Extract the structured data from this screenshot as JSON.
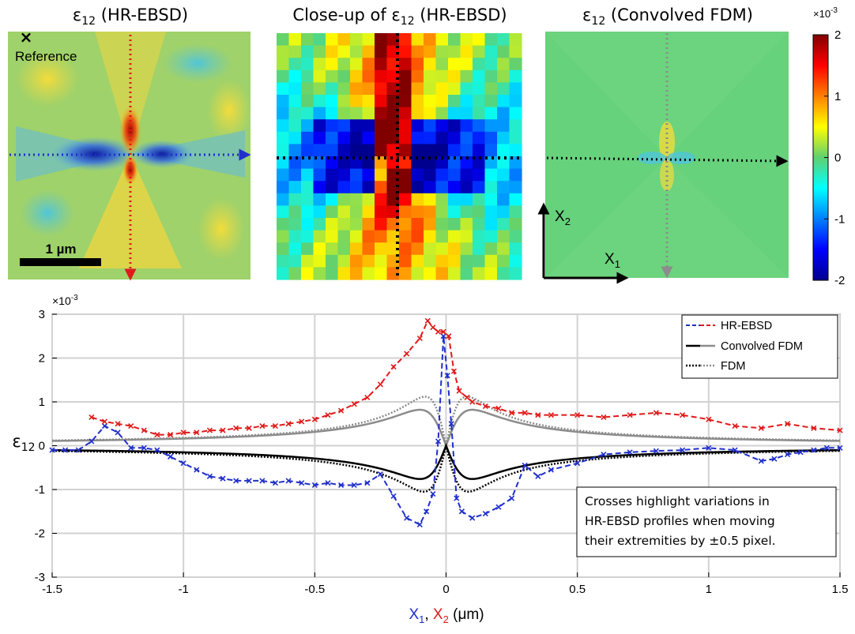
{
  "maps": [
    {
      "title_main": "ε",
      "title_sub": "12",
      "title_tail": " (HR-EBSD)",
      "reference_label": "Reference",
      "scale_label": "1 µm"
    },
    {
      "title_main": "Close-up of ε",
      "title_sub": "12",
      "title_tail": " (HR-EBSD)"
    },
    {
      "title_main": "ε",
      "title_sub": "12",
      "title_tail": " (Convolved FDM)"
    }
  ],
  "axes_glyph": {
    "x_main": "X",
    "x_sub": "1",
    "y_main": "X",
    "y_sub": "2"
  },
  "colorbar": {
    "exponent_base": "×10",
    "exponent_power": "-3",
    "ticks": [
      "2",
      "1",
      "0",
      "-1",
      "-2"
    ],
    "range": [
      -2,
      2
    ]
  },
  "colors": {
    "blue": "#1f2ecc",
    "red": "#e01a1a",
    "black": "#000000",
    "gray": "#8c8c8c"
  },
  "chart_data": {
    "type": "line",
    "exponent_base": "×10",
    "exponent_power": "-3",
    "ylabel_main": "ε",
    "ylabel_sub": "12",
    "xlabel": {
      "p1_main": "X",
      "p1_sub": "1",
      "sep": ", ",
      "p2_main": "X",
      "p2_sub": "2",
      "unit": " (μm)"
    },
    "xlim": [
      -1.5,
      1.5
    ],
    "ylim": [
      -3,
      3
    ],
    "xticks": [
      -1.5,
      -1,
      -0.5,
      0,
      0.5,
      1,
      1.5
    ],
    "xtick_labels": [
      "-1.5",
      "-1",
      "-0.5",
      "0",
      "0.5",
      "1",
      "1.5"
    ],
    "yticks": [
      3,
      2,
      1,
      0,
      -1,
      -2,
      -3
    ],
    "ytick_labels": [
      "3",
      "2",
      "1",
      "0",
      "-1",
      "-2",
      "-3"
    ],
    "grid": true,
    "legend_position": "top-right",
    "legend": [
      {
        "label": "HR-EBSD",
        "style": "dashed-blue-red"
      },
      {
        "label": "Convolved FDM",
        "style": "solid-black-gray"
      },
      {
        "label": "FDM",
        "style": "dotted-black-gray"
      }
    ],
    "annotation": [
      "Crosses highlight variations in",
      "HR-EBSD profiles when moving",
      "their extremities by ±0.5 pixel."
    ],
    "series": [
      {
        "name": "HR-EBSD X1",
        "color": "#1f2ecc",
        "style": "dashed",
        "x": [
          -1.5,
          -1.45,
          -1.4,
          -1.35,
          -1.3,
          -1.25,
          -1.2,
          -1.15,
          -1.1,
          -1.05,
          -1,
          -0.95,
          -0.9,
          -0.85,
          -0.8,
          -0.75,
          -0.7,
          -0.65,
          -0.6,
          -0.55,
          -0.5,
          -0.45,
          -0.4,
          -0.35,
          -0.3,
          -0.25,
          -0.2,
          -0.15,
          -0.1,
          -0.075,
          -0.05,
          -0.03,
          -0.01,
          0.005,
          0.02,
          0.04,
          0.06,
          0.1,
          0.15,
          0.2,
          0.25,
          0.3,
          0.35,
          0.4,
          0.5,
          0.6,
          0.7,
          0.8,
          0.9,
          1,
          1.1,
          1.2,
          1.25,
          1.3,
          1.35,
          1.4,
          1.45,
          1.5
        ],
        "y": [
          -0.1,
          -0.1,
          -0.1,
          0.1,
          0.45,
          0.3,
          -0.05,
          -0.05,
          -0.1,
          -0.25,
          -0.4,
          -0.55,
          -0.7,
          -0.75,
          -0.8,
          -0.8,
          -0.8,
          -0.85,
          -0.8,
          -0.85,
          -0.9,
          -0.85,
          -0.9,
          -0.9,
          -0.85,
          -0.65,
          -1.15,
          -1.65,
          -1.8,
          -1.5,
          -1.1,
          0.1,
          2.5,
          1.6,
          0.5,
          -1.2,
          -1.5,
          -1.65,
          -1.55,
          -1.4,
          -1.2,
          -0.45,
          -0.7,
          -0.55,
          -0.4,
          -0.2,
          -0.15,
          -0.12,
          -0.1,
          -0.05,
          -0.1,
          -0.35,
          -0.3,
          -0.2,
          -0.15,
          -0.1,
          -0.05,
          -0.05
        ]
      },
      {
        "name": "HR-EBSD X2",
        "color": "#e01a1a",
        "style": "dashed",
        "x": [
          -1.35,
          -1.3,
          -1.25,
          -1.2,
          -1.15,
          -1.1,
          -1.05,
          -1,
          -0.95,
          -0.9,
          -0.85,
          -0.8,
          -0.75,
          -0.7,
          -0.65,
          -0.6,
          -0.55,
          -0.5,
          -0.45,
          -0.4,
          -0.35,
          -0.3,
          -0.25,
          -0.2,
          -0.15,
          -0.1,
          -0.07,
          -0.05,
          -0.03,
          -0.01,
          0.01,
          0.03,
          0.05,
          0.08,
          0.1,
          0.15,
          0.2,
          0.25,
          0.3,
          0.35,
          0.4,
          0.5,
          0.6,
          0.7,
          0.8,
          0.9,
          1,
          1.1,
          1.2,
          1.3,
          1.4,
          1.5
        ],
        "y": [
          0.65,
          0.55,
          0.5,
          0.45,
          0.35,
          0.25,
          0.25,
          0.3,
          0.3,
          0.35,
          0.35,
          0.4,
          0.4,
          0.45,
          0.45,
          0.5,
          0.55,
          0.6,
          0.7,
          0.8,
          0.95,
          1.1,
          1.4,
          1.8,
          2.1,
          2.45,
          2.85,
          2.7,
          2.6,
          2.6,
          2.5,
          1.7,
          1.25,
          1.1,
          1.0,
          0.9,
          0.85,
          0.75,
          0.75,
          0.7,
          0.7,
          0.7,
          0.65,
          0.7,
          0.75,
          0.7,
          0.6,
          0.45,
          0.4,
          0.5,
          0.4,
          0.35
        ]
      }
    ]
  }
}
